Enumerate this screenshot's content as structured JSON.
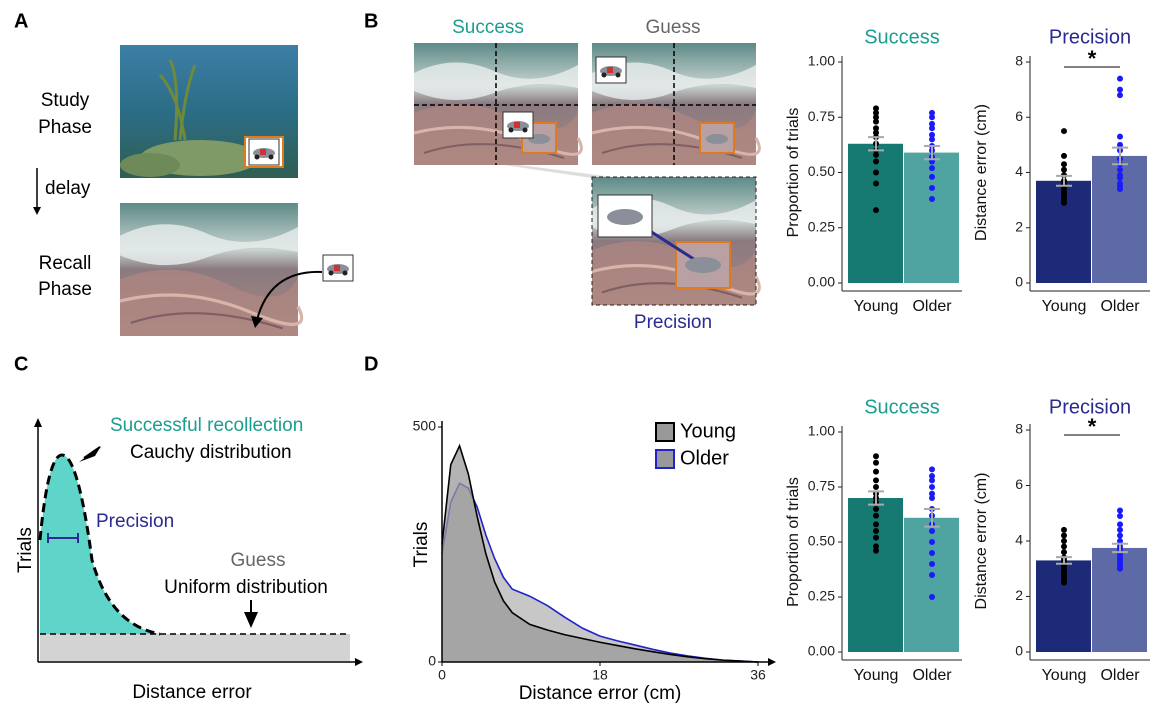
{
  "panel_labels": [
    "A",
    "B",
    "C",
    "D"
  ],
  "panel_a": {
    "study": "Study",
    "study_2": "Phase",
    "delay": "delay",
    "recall": "Recall",
    "recall_2": "Phase"
  },
  "panel_b": {
    "success": "Success",
    "guess": "Guess",
    "precision": "Precision"
  },
  "panel_c": {
    "success": "Successful recollection",
    "cauchy": "Cauchy distribution",
    "precision": "Precision",
    "guess": "Guess",
    "uniform": "Uniform distribution",
    "y_label": "Trials",
    "x_label": "Distance error"
  },
  "chart_data": [
    {
      "type": "bar",
      "title": "Success",
      "title_color": "#1a9e8f",
      "y_label": "Proportion of trials",
      "categories": [
        "Young",
        "Older"
      ],
      "values": [
        0.63,
        0.59
      ],
      "errors": [
        0.03,
        0.03
      ],
      "colors": [
        "#177a72",
        "#4fa3a0"
      ],
      "points": [
        [
          0.79,
          0.77,
          0.75,
          0.73,
          0.7,
          0.68,
          0.66,
          0.63,
          0.6,
          0.58,
          0.55,
          0.5,
          0.45,
          0.33
        ],
        [
          0.77,
          0.75,
          0.72,
          0.7,
          0.67,
          0.65,
          0.62,
          0.6,
          0.57,
          0.55,
          0.52,
          0.48,
          0.43,
          0.38
        ]
      ],
      "point_colors": [
        "#000000",
        "#1a1aff"
      ],
      "ylim": [
        0,
        1
      ],
      "yticks": [
        {
          "value": 0,
          "label": "0.00"
        },
        {
          "value": 0.25,
          "label": "0.25"
        },
        {
          "value": 0.5,
          "label": "0.50"
        },
        {
          "value": 0.75,
          "label": "0.75"
        },
        {
          "value": 1,
          "label": "1.00"
        }
      ]
    },
    {
      "type": "bar",
      "title": "Precision",
      "title_color": "#2b2b8f",
      "y_label": "Distance error (cm)",
      "categories": [
        "Young",
        "Older"
      ],
      "values": [
        3.7,
        4.6
      ],
      "errors": [
        0.18,
        0.3
      ],
      "colors": [
        "#1c2a78",
        "#5e6aa6"
      ],
      "points": [
        [
          5.5,
          4.6,
          4.3,
          4.1,
          3.9,
          3.7,
          3.6,
          3.5,
          3.4,
          3.3,
          3.2,
          3.1,
          3.0,
          2.9
        ],
        [
          7.4,
          7.0,
          6.8,
          5.3,
          5.0,
          4.8,
          4.5,
          4.3,
          4.1,
          3.9,
          3.8,
          3.6,
          3.5,
          3.4
        ]
      ],
      "point_colors": [
        "#000000",
        "#1a1aff"
      ],
      "significance": "*",
      "ylim": [
        0,
        8
      ],
      "yticks": [
        0,
        2,
        4,
        6,
        8
      ]
    },
    {
      "type": "bar",
      "title": "Success",
      "title_color": "#1a9e8f",
      "y_label": "Proportion of trials",
      "categories": [
        "Young",
        "Older"
      ],
      "values": [
        0.7,
        0.61
      ],
      "errors": [
        0.03,
        0.04
      ],
      "colors": [
        "#177a72",
        "#4fa3a0"
      ],
      "points": [
        [
          0.89,
          0.86,
          0.82,
          0.78,
          0.75,
          0.72,
          0.7,
          0.68,
          0.65,
          0.62,
          0.58,
          0.55,
          0.52,
          0.48,
          0.46
        ],
        [
          0.83,
          0.8,
          0.78,
          0.75,
          0.72,
          0.7,
          0.65,
          0.62,
          0.58,
          0.55,
          0.5,
          0.45,
          0.4,
          0.35,
          0.25
        ]
      ],
      "point_colors": [
        "#000000",
        "#1a1aff"
      ],
      "ylim": [
        0,
        1
      ],
      "yticks": [
        {
          "value": 0,
          "label": "0.00"
        },
        {
          "value": 0.25,
          "label": "0.25"
        },
        {
          "value": 0.5,
          "label": "0.50"
        },
        {
          "value": 0.75,
          "label": "0.75"
        },
        {
          "value": 1,
          "label": "1.00"
        }
      ]
    },
    {
      "type": "bar",
      "title": "Precision",
      "title_color": "#2b2b8f",
      "y_label": "Distance error (cm)",
      "categories": [
        "Young",
        "Older"
      ],
      "values": [
        3.3,
        3.75
      ],
      "errors": [
        0.12,
        0.15
      ],
      "colors": [
        "#1c2a78",
        "#5e6aa6"
      ],
      "points": [
        [
          4.4,
          4.2,
          4.0,
          3.8,
          3.6,
          3.4,
          3.3,
          3.2,
          3.1,
          3.0,
          2.9,
          2.8,
          2.7,
          2.6,
          2.5
        ],
        [
          5.1,
          4.9,
          4.6,
          4.4,
          4.2,
          4.0,
          3.8,
          3.7,
          3.6,
          3.5,
          3.4,
          3.3,
          3.2,
          3.1,
          3.0
        ]
      ],
      "point_colors": [
        "#000000",
        "#1a1aff"
      ],
      "significance": "*",
      "ylim": [
        0,
        8
      ],
      "yticks": [
        0,
        2,
        4,
        6,
        8
      ]
    },
    {
      "type": "area",
      "x_label": "Distance error (cm)",
      "y_label": "Trials",
      "x": [
        0,
        1,
        2,
        3,
        4,
        5,
        6,
        7,
        8,
        10,
        12,
        14,
        16,
        18,
        20,
        22,
        24,
        26,
        28,
        30,
        32,
        34,
        36
      ],
      "series": [
        {
          "name": "Young",
          "color": "#000000",
          "fill": "#999999",
          "values": [
            250,
            420,
            460,
            400,
            310,
            230,
            170,
            130,
            105,
            80,
            68,
            58,
            50,
            42,
            35,
            28,
            22,
            16,
            11,
            7,
            4,
            2,
            0
          ]
        },
        {
          "name": "Older",
          "color": "#2222cc",
          "fill": "#999999",
          "values": [
            230,
            340,
            380,
            370,
            330,
            270,
            220,
            180,
            155,
            140,
            120,
            95,
            72,
            55,
            45,
            36,
            27,
            19,
            13,
            8,
            4,
            2,
            0
          ]
        }
      ],
      "xlim": [
        0,
        36
      ],
      "xticks": [
        0,
        18,
        36
      ],
      "ylim": [
        0,
        500
      ],
      "yticks": [
        0,
        500
      ]
    }
  ]
}
